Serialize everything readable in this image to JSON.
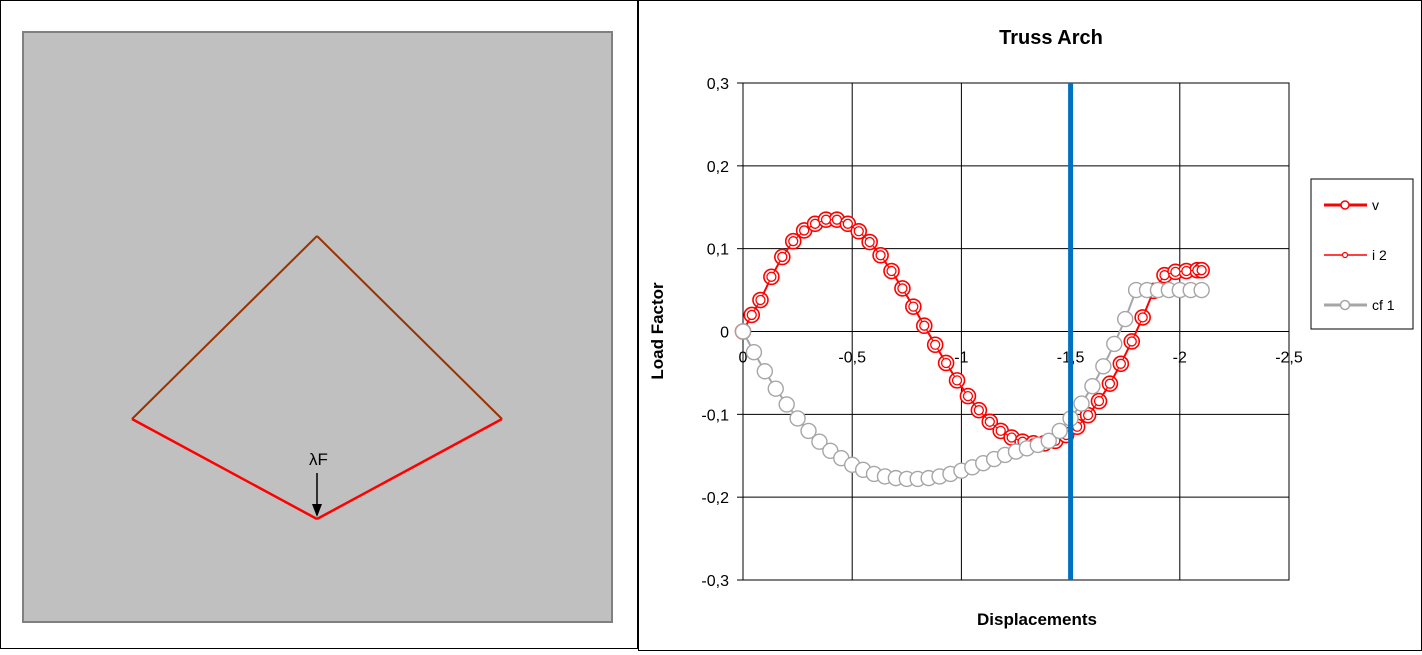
{
  "colors": {
    "canvas_bg": "#c0c0c0",
    "canvas_border": "#808080",
    "upper_members": "#993300",
    "lower_members": "#ff0000",
    "v_series": "#ff0000",
    "i2_series": "#ff0000",
    "cf1_series": "#a6a6a6",
    "marker_fill": "#ffffff",
    "vertical_marker": "#0070c0"
  },
  "structure": {
    "load_label": "λF",
    "load_arrow_icon": "arrow-down-icon"
  },
  "chart_data": {
    "type": "scatter",
    "title": "Truss Arch",
    "xlabel": "Displacements",
    "ylabel": "Load Factor",
    "xlim": [
      0,
      -2.5
    ],
    "ylim": [
      -0.3,
      0.3
    ],
    "x_ticks": [
      "0",
      "-0,5",
      "-1",
      "-1,5",
      "-2",
      "-2,5"
    ],
    "y_ticks": [
      "0,3",
      "0,2",
      "0,1",
      "0",
      "-0,1",
      "-0,2",
      "-0,3"
    ],
    "grid": true,
    "legend_position": "right",
    "vertical_line_x": -1.5,
    "series": [
      {
        "name": "v",
        "x": [
          0,
          -0.04,
          -0.08,
          -0.13,
          -0.18,
          -0.23,
          -0.28,
          -0.33,
          -0.38,
          -0.43,
          -0.48,
          -0.53,
          -0.58,
          -0.63,
          -0.68,
          -0.73,
          -0.78,
          -0.83,
          -0.88,
          -0.93,
          -0.98,
          -1.03,
          -1.08,
          -1.13,
          -1.18,
          -1.23,
          -1.28,
          -1.33,
          -1.38,
          -1.43,
          -1.48,
          -1.53,
          -1.58,
          -1.63,
          -1.68,
          -1.73,
          -1.78,
          -1.83,
          -1.88,
          -1.93,
          -1.98,
          -2.03,
          -2.08,
          -2.1
        ],
        "y": [
          0,
          0.02,
          0.038,
          0.066,
          0.09,
          0.109,
          0.122,
          0.13,
          0.135,
          0.135,
          0.13,
          0.121,
          0.108,
          0.092,
          0.073,
          0.052,
          0.03,
          0.007,
          -0.016,
          -0.038,
          -0.059,
          -0.078,
          -0.095,
          -0.109,
          -0.12,
          -0.128,
          -0.133,
          -0.135,
          -0.135,
          -0.132,
          -0.125,
          -0.115,
          -0.101,
          -0.084,
          -0.063,
          -0.039,
          -0.012,
          0.017,
          0.049,
          0.068,
          0.072,
          0.073,
          0.074,
          0.074
        ]
      },
      {
        "name": "i 2",
        "x": [
          0,
          -0.04,
          -0.08,
          -0.13,
          -0.18,
          -0.23,
          -0.28,
          -0.33,
          -0.38,
          -0.43,
          -0.48,
          -0.53,
          -0.58,
          -0.63,
          -0.68,
          -0.73,
          -0.78,
          -0.83,
          -0.88,
          -0.93,
          -0.98,
          -1.03,
          -1.08,
          -1.13,
          -1.18,
          -1.23,
          -1.28,
          -1.33,
          -1.38,
          -1.43,
          -1.48,
          -1.53,
          -1.58,
          -1.63,
          -1.68,
          -1.73,
          -1.78,
          -1.83,
          -1.88,
          -1.93,
          -1.98,
          -2.03,
          -2.08,
          -2.1
        ],
        "y": [
          0,
          0.02,
          0.038,
          0.066,
          0.09,
          0.109,
          0.122,
          0.13,
          0.135,
          0.135,
          0.13,
          0.121,
          0.108,
          0.092,
          0.073,
          0.052,
          0.03,
          0.007,
          -0.016,
          -0.038,
          -0.059,
          -0.078,
          -0.095,
          -0.109,
          -0.12,
          -0.128,
          -0.133,
          -0.135,
          -0.135,
          -0.132,
          -0.125,
          -0.115,
          -0.101,
          -0.084,
          -0.063,
          -0.039,
          -0.012,
          0.017,
          0.049,
          0.068,
          0.072,
          0.073,
          0.074,
          0.074
        ]
      },
      {
        "name": "cf 1",
        "x": [
          0,
          -0.05,
          -0.1,
          -0.15,
          -0.2,
          -0.25,
          -0.3,
          -0.35,
          -0.4,
          -0.45,
          -0.5,
          -0.55,
          -0.6,
          -0.65,
          -0.7,
          -0.75,
          -0.8,
          -0.85,
          -0.9,
          -0.95,
          -1.0,
          -1.05,
          -1.1,
          -1.15,
          -1.2,
          -1.25,
          -1.3,
          -1.35,
          -1.4,
          -1.45,
          -1.5,
          -1.55,
          -1.6,
          -1.65,
          -1.7,
          -1.75,
          -1.8,
          -1.85,
          -1.9,
          -1.95,
          -2.0,
          -2.05,
          -2.1
        ],
        "y": [
          0,
          -0.025,
          -0.048,
          -0.069,
          -0.088,
          -0.105,
          -0.12,
          -0.133,
          -0.144,
          -0.153,
          -0.161,
          -0.167,
          -0.172,
          -0.175,
          -0.177,
          -0.178,
          -0.178,
          -0.177,
          -0.175,
          -0.172,
          -0.168,
          -0.164,
          -0.159,
          -0.154,
          -0.149,
          -0.145,
          -0.141,
          -0.137,
          -0.132,
          -0.12,
          -0.105,
          -0.087,
          -0.066,
          -0.042,
          -0.015,
          0.015,
          0.05,
          0.05,
          0.05,
          0.05,
          0.05,
          0.05,
          0.05
        ]
      }
    ]
  }
}
